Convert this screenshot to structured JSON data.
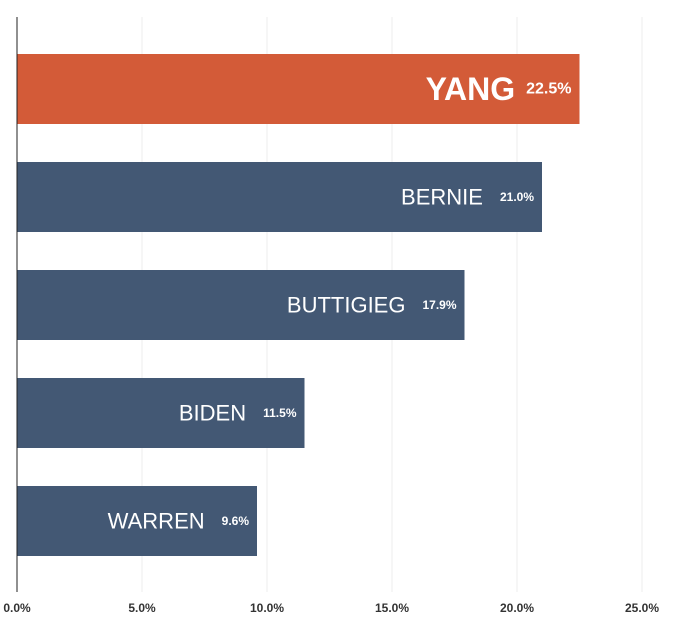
{
  "chart_data": {
    "type": "bar",
    "orientation": "horizontal",
    "title": "",
    "xlabel": "",
    "ylabel": "",
    "categories": [
      "YANG",
      "BERNIE",
      "BUTTIGIEG",
      "BIDEN",
      "WARREN"
    ],
    "values": [
      22.5,
      21.0,
      17.9,
      11.5,
      9.6
    ],
    "value_labels": [
      "22.5%",
      "21.0%",
      "17.9%",
      "11.5%",
      "9.6%"
    ],
    "highlight": "YANG",
    "xlim": [
      0,
      25
    ],
    "x_ticks": [
      0,
      5,
      10,
      15,
      20,
      25
    ],
    "x_tick_labels": [
      "0.0%",
      "5.0%",
      "10.0%",
      "15.0%",
      "20.0%",
      "25.0%"
    ],
    "grid": true,
    "legend": "none"
  },
  "colors": {
    "highlight": "#d35b38",
    "bar": "#435874",
    "grid": "#eeeeee",
    "axis": "#222222"
  }
}
